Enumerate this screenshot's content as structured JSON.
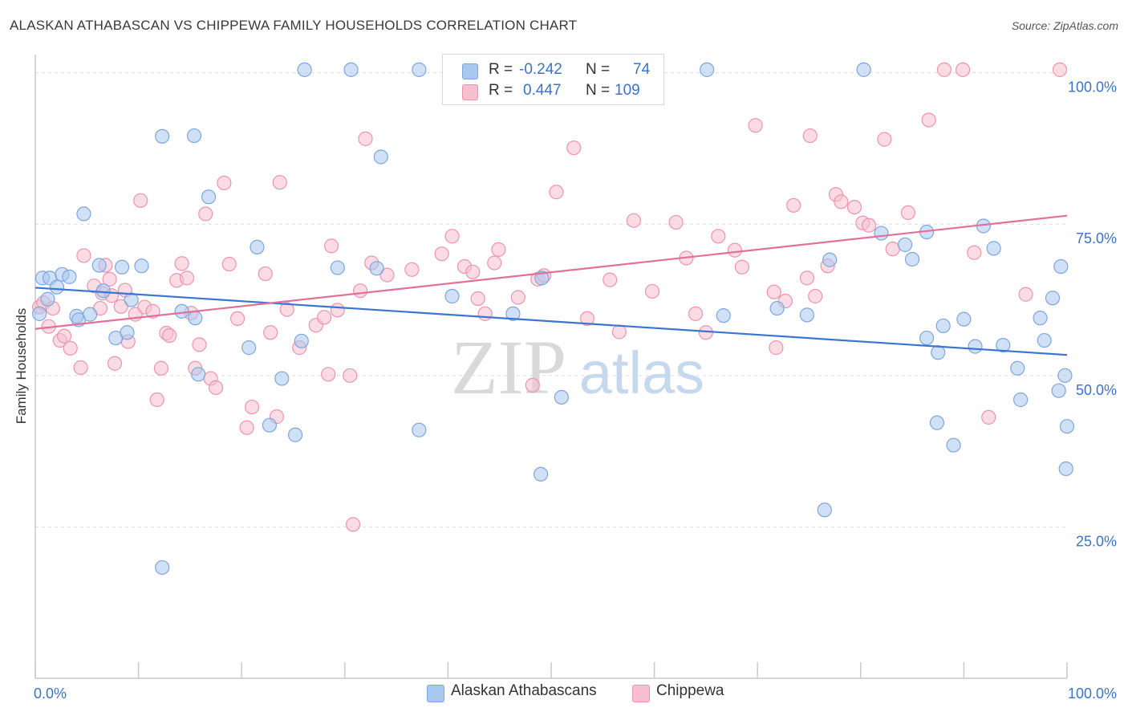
{
  "title": "ALASKAN ATHABASCAN VS CHIPPEWA FAMILY HOUSEHOLDS CORRELATION CHART",
  "source": "Source: ZipAtlas.com",
  "watermark": {
    "zip": "ZIP",
    "atlas": "atlas"
  },
  "legend": {
    "rows": [
      {
        "r_label": "R =",
        "r_value": "-0.242",
        "n_label": "N =",
        "n_value": "74"
      },
      {
        "r_label": "R =",
        "r_value": "0.447",
        "n_label": "N =",
        "n_value": "109"
      }
    ]
  },
  "colors": {
    "blue_fill": "#a9c8f0",
    "blue_stroke": "#7da6de",
    "blue_line": "#3a76d0",
    "pink_fill": "#f7bfd0",
    "pink_stroke": "#ec93b0",
    "pink_line": "#e0719a",
    "axis_label": "#3b73c9",
    "grid": "#dcdcdc"
  },
  "chart_data": {
    "type": "scatter",
    "title": "ALASKAN ATHABASCAN VS CHIPPEWA FAMILY HOUSEHOLDS CORRELATION CHART",
    "xlabel": "",
    "ylabel": "Family Households",
    "xlim": [
      0,
      100
    ],
    "ylim": [
      0,
      103
    ],
    "x_tick_labels": [
      "0.0%",
      "100.0%"
    ],
    "y_ticks": [
      25,
      50,
      75,
      100
    ],
    "y_tick_labels": [
      "25.0%",
      "50.0%",
      "75.0%",
      "100.0%"
    ],
    "grid": true,
    "legend_position": "top-center",
    "series": [
      {
        "name": "Alaskan Athabascans",
        "color": "#a9c8f0",
        "trend": {
          "x": [
            0,
            100
          ],
          "y": [
            64.5,
            53.4
          ]
        },
        "points": [
          [
            0.4,
            60.2
          ],
          [
            0.7,
            66.1
          ],
          [
            1.2,
            62.6
          ],
          [
            1.4,
            66.1
          ],
          [
            2.1,
            64.6
          ],
          [
            2.6,
            66.7
          ],
          [
            3.3,
            66.3
          ],
          [
            4.0,
            59.8
          ],
          [
            4.2,
            59.2
          ],
          [
            5.3,
            60.1
          ],
          [
            4.7,
            76.7
          ],
          [
            6.2,
            68.2
          ],
          [
            6.6,
            64.0
          ],
          [
            7.8,
            56.2
          ],
          [
            8.4,
            67.9
          ],
          [
            8.9,
            57.1
          ],
          [
            9.3,
            62.5
          ],
          [
            10.3,
            68.1
          ],
          [
            12.3,
            89.5
          ],
          [
            12.3,
            18.3
          ],
          [
            14.2,
            60.6
          ],
          [
            15.4,
            89.6
          ],
          [
            15.5,
            59.5
          ],
          [
            15.8,
            50.2
          ],
          [
            16.8,
            79.5
          ],
          [
            20.7,
            54.6
          ],
          [
            21.5,
            71.2
          ],
          [
            22.7,
            41.8
          ],
          [
            23.9,
            49.5
          ],
          [
            25.2,
            40.2
          ],
          [
            25.8,
            55.7
          ],
          [
            26.1,
            100.5
          ],
          [
            33.1,
            67.7
          ],
          [
            33.5,
            86.1
          ],
          [
            29.3,
            67.8
          ],
          [
            30.6,
            100.5
          ],
          [
            37.2,
            41.0
          ],
          [
            37.2,
            100.5
          ],
          [
            40.4,
            63.1
          ],
          [
            46.3,
            60.2
          ],
          [
            49.0,
            33.7
          ],
          [
            49.1,
            66.1
          ],
          [
            51.0,
            46.4
          ],
          [
            66.7,
            59.9
          ],
          [
            71.9,
            61.1
          ],
          [
            74.8,
            60.0
          ],
          [
            76.5,
            27.8
          ],
          [
            77.0,
            69.1
          ],
          [
            65.1,
            100.5
          ],
          [
            80.3,
            100.5
          ],
          [
            82.0,
            73.5
          ],
          [
            84.3,
            71.6
          ],
          [
            85.0,
            69.2
          ],
          [
            86.4,
            56.2
          ],
          [
            86.4,
            73.7
          ],
          [
            87.4,
            42.2
          ],
          [
            87.5,
            53.8
          ],
          [
            88.0,
            58.2
          ],
          [
            89.0,
            38.5
          ],
          [
            90.0,
            59.3
          ],
          [
            91.1,
            54.8
          ],
          [
            91.9,
            74.7
          ],
          [
            92.9,
            71.0
          ],
          [
            93.8,
            55.0
          ],
          [
            95.2,
            51.2
          ],
          [
            95.5,
            46.0
          ],
          [
            97.4,
            59.5
          ],
          [
            97.8,
            55.8
          ],
          [
            98.6,
            62.8
          ],
          [
            99.2,
            47.5
          ],
          [
            99.4,
            68.0
          ],
          [
            99.9,
            34.6
          ],
          [
            99.8,
            50.0
          ],
          [
            100.0,
            41.6
          ]
        ]
      },
      {
        "name": "Chippewa",
        "color": "#f7bfd0",
        "trend": {
          "x": [
            0,
            100
          ],
          "y": [
            57.7,
            76.4
          ]
        },
        "points": [
          [
            0.4,
            61.3
          ],
          [
            0.8,
            62.0
          ],
          [
            1.3,
            58.1
          ],
          [
            1.7,
            61.1
          ],
          [
            2.4,
            55.8
          ],
          [
            2.8,
            56.5
          ],
          [
            3.4,
            54.5
          ],
          [
            4.4,
            51.3
          ],
          [
            4.7,
            69.8
          ],
          [
            5.7,
            64.8
          ],
          [
            6.3,
            61.1
          ],
          [
            6.5,
            63.6
          ],
          [
            6.8,
            68.2
          ],
          [
            7.2,
            65.9
          ],
          [
            7.4,
            63.2
          ],
          [
            7.7,
            52.0
          ],
          [
            8.3,
            61.4
          ],
          [
            8.7,
            64.1
          ],
          [
            9.0,
            55.6
          ],
          [
            9.7,
            60.1
          ],
          [
            10.2,
            78.9
          ],
          [
            10.6,
            61.3
          ],
          [
            11.4,
            60.6
          ],
          [
            11.8,
            46.0
          ],
          [
            12.2,
            51.2
          ],
          [
            12.7,
            57.0
          ],
          [
            13.0,
            56.6
          ],
          [
            13.7,
            65.7
          ],
          [
            14.2,
            68.5
          ],
          [
            14.7,
            66.1
          ],
          [
            15.1,
            60.3
          ],
          [
            15.5,
            51.2
          ],
          [
            15.9,
            55.1
          ],
          [
            16.5,
            76.7
          ],
          [
            17.0,
            49.5
          ],
          [
            17.5,
            48.0
          ],
          [
            18.3,
            81.8
          ],
          [
            18.8,
            68.4
          ],
          [
            19.6,
            59.4
          ],
          [
            20.5,
            41.4
          ],
          [
            21.0,
            44.8
          ],
          [
            22.3,
            66.8
          ],
          [
            22.8,
            57.1
          ],
          [
            23.4,
            43.2
          ],
          [
            23.7,
            81.9
          ],
          [
            24.4,
            60.9
          ],
          [
            25.6,
            54.6
          ],
          [
            27.2,
            58.3
          ],
          [
            28.0,
            59.6
          ],
          [
            28.4,
            50.2
          ],
          [
            28.7,
            71.4
          ],
          [
            29.3,
            60.8
          ],
          [
            30.5,
            50.0
          ],
          [
            30.8,
            25.4
          ],
          [
            31.5,
            64.0
          ],
          [
            32.0,
            89.1
          ],
          [
            32.6,
            68.6
          ],
          [
            34.1,
            66.6
          ],
          [
            36.5,
            67.5
          ],
          [
            39.4,
            70.1
          ],
          [
            40.4,
            73.0
          ],
          [
            41.6,
            68.0
          ],
          [
            42.4,
            67.1
          ],
          [
            42.9,
            62.7
          ],
          [
            43.6,
            60.2
          ],
          [
            44.5,
            68.6
          ],
          [
            44.9,
            70.8
          ],
          [
            46.8,
            62.9
          ],
          [
            48.2,
            48.4
          ],
          [
            48.7,
            65.9
          ],
          [
            49.3,
            66.5
          ],
          [
            50.5,
            80.3
          ],
          [
            52.2,
            87.6
          ],
          [
            53.5,
            59.4
          ],
          [
            55.7,
            65.8
          ],
          [
            56.6,
            57.2
          ],
          [
            58.0,
            75.6
          ],
          [
            59.8,
            63.9
          ],
          [
            62.1,
            75.3
          ],
          [
            63.1,
            69.4
          ],
          [
            64.0,
            60.2
          ],
          [
            65.0,
            57.1
          ],
          [
            66.2,
            73.0
          ],
          [
            67.8,
            70.7
          ],
          [
            68.5,
            67.9
          ],
          [
            69.8,
            91.3
          ],
          [
            71.6,
            63.8
          ],
          [
            71.8,
            54.6
          ],
          [
            72.7,
            62.3
          ],
          [
            73.5,
            78.1
          ],
          [
            74.8,
            66.1
          ],
          [
            75.1,
            89.6
          ],
          [
            75.6,
            63.1
          ],
          [
            76.8,
            68.1
          ],
          [
            77.6,
            79.9
          ],
          [
            78.1,
            78.7
          ],
          [
            79.4,
            77.8
          ],
          [
            80.2,
            75.2
          ],
          [
            80.8,
            74.8
          ],
          [
            82.3,
            89.0
          ],
          [
            83.1,
            70.9
          ],
          [
            84.6,
            76.9
          ],
          [
            86.6,
            92.2
          ],
          [
            88.1,
            100.5
          ],
          [
            89.9,
            100.5
          ],
          [
            91.0,
            70.3
          ],
          [
            92.4,
            43.1
          ],
          [
            96.0,
            63.4
          ],
          [
            99.3,
            100.5
          ]
        ]
      }
    ]
  }
}
